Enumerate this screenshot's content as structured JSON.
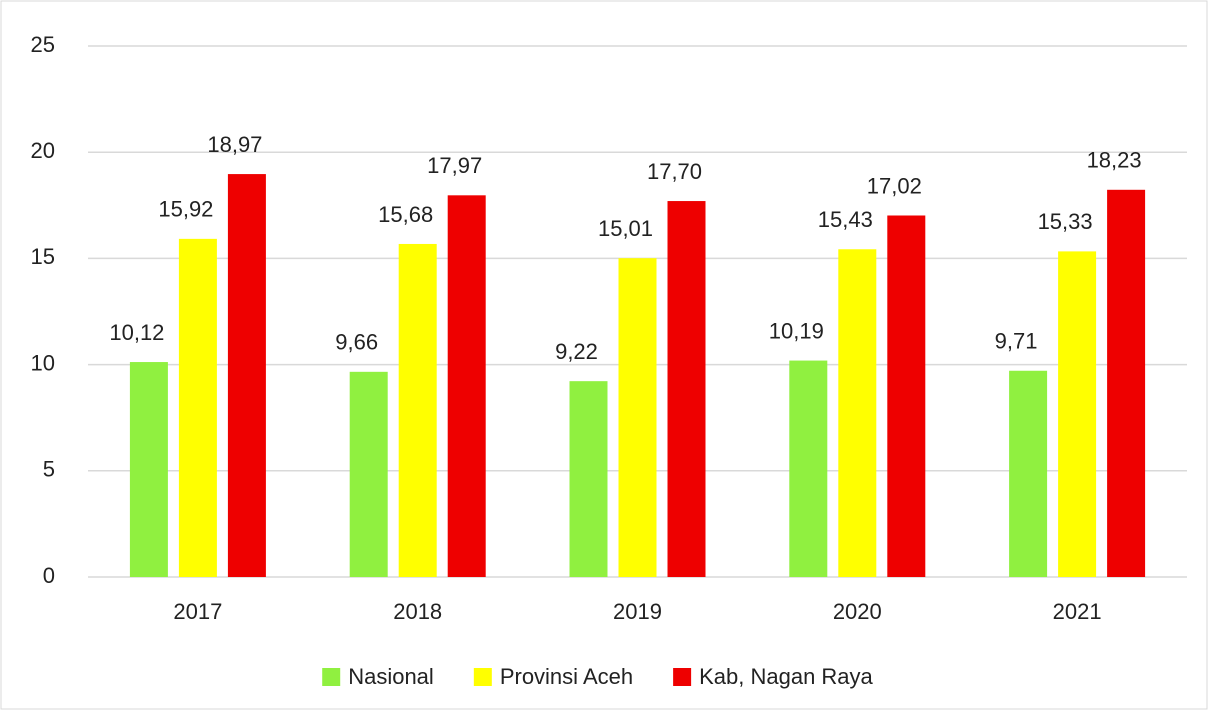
{
  "chart_data": {
    "type": "bar",
    "categories": [
      "2017",
      "2018",
      "2019",
      "2020",
      "2021"
    ],
    "series": [
      {
        "name": "Nasional",
        "color": "#90f040",
        "values": [
          10.12,
          9.66,
          9.22,
          10.19,
          9.71
        ],
        "value_labels": [
          "10,12",
          "9,66",
          "9,22",
          "10,19",
          "9,71"
        ]
      },
      {
        "name": "Provinsi Aceh",
        "color": "#ffff00",
        "values": [
          15.92,
          15.68,
          15.01,
          15.43,
          15.33
        ],
        "value_labels": [
          "15,92",
          "15,68",
          "15,01",
          "15,43",
          "15,33"
        ]
      },
      {
        "name": "Kab, Nagan Raya",
        "color": "#ee0000",
        "values": [
          18.97,
          17.97,
          17.7,
          17.02,
          18.23
        ],
        "value_labels": [
          "18,97",
          "17,97",
          "17,70",
          "17,02",
          "18,23"
        ]
      }
    ],
    "ylim": [
      0,
      25
    ],
    "yticks": [
      0,
      5,
      10,
      15,
      20,
      25
    ],
    "grid": true,
    "legend": "bottom"
  }
}
